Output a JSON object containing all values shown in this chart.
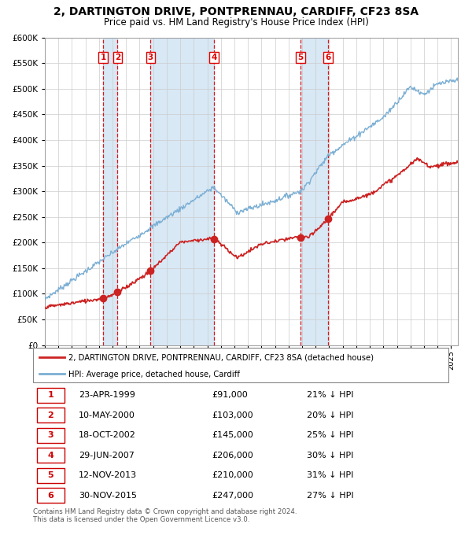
{
  "title": "2, DARTINGTON DRIVE, PONTPRENNAU, CARDIFF, CF23 8SA",
  "subtitle": "Price paid vs. HM Land Registry's House Price Index (HPI)",
  "purchases": [
    {
      "label": "1",
      "date": 1999.31,
      "price": 91000
    },
    {
      "label": "2",
      "date": 2000.37,
      "price": 103000
    },
    {
      "label": "3",
      "date": 2002.8,
      "price": 145000
    },
    {
      "label": "4",
      "date": 2007.49,
      "price": 206000
    },
    {
      "label": "5",
      "date": 2013.87,
      "price": 210000
    },
    {
      "label": "6",
      "date": 2015.92,
      "price": 247000
    }
  ],
  "table_rows": [
    {
      "num": "1",
      "date": "23-APR-1999",
      "price": "£91,000",
      "pct": "21% ↓ HPI"
    },
    {
      "num": "2",
      "date": "10-MAY-2000",
      "price": "£103,000",
      "pct": "20% ↓ HPI"
    },
    {
      "num": "3",
      "date": "18-OCT-2002",
      "price": "£145,000",
      "pct": "25% ↓ HPI"
    },
    {
      "num": "4",
      "date": "29-JUN-2007",
      "price": "£206,000",
      "pct": "30% ↓ HPI"
    },
    {
      "num": "5",
      "date": "12-NOV-2013",
      "price": "£210,000",
      "pct": "31% ↓ HPI"
    },
    {
      "num": "6",
      "date": "30-NOV-2015",
      "price": "£247,000",
      "pct": "27% ↓ HPI"
    }
  ],
  "legend_line1": "2, DARTINGTON DRIVE, PONTPRENNAU, CARDIFF, CF23 8SA (detached house)",
  "legend_line2": "HPI: Average price, detached house, Cardiff",
  "footer": "Contains HM Land Registry data © Crown copyright and database right 2024.\nThis data is licensed under the Open Government Licence v3.0.",
  "hpi_color": "#7bafd4",
  "price_color": "#cc2222",
  "vline_color": "#dd0000",
  "shade_color": "#d8e8f5",
  "ylim": [
    0,
    600000
  ],
  "yticks": [
    0,
    50000,
    100000,
    150000,
    200000,
    250000,
    300000,
    350000,
    400000,
    450000,
    500000,
    550000,
    600000
  ],
  "xlim_start": 1995,
  "xlim_end": 2025.5
}
